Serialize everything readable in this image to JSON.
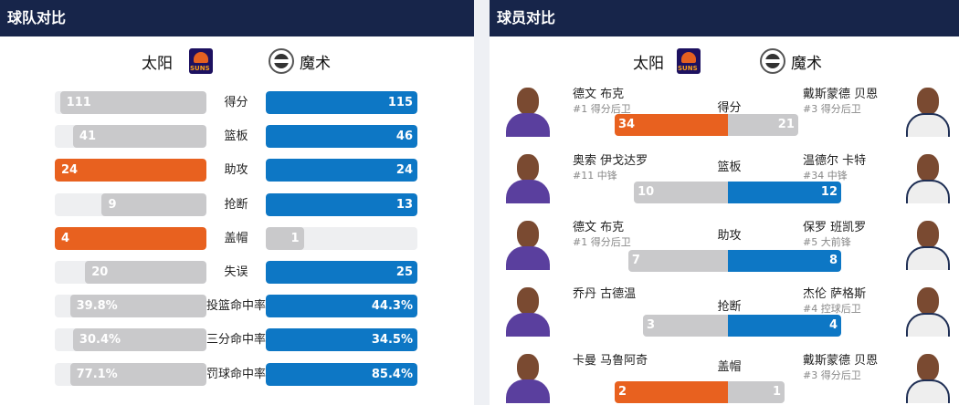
{
  "team_panel": {
    "title": "球队对比",
    "home_team": "太阳",
    "away_team": "魔术",
    "home_logo_icon": "suns-logo-icon",
    "away_logo_icon": "magic-logo-icon",
    "colors": {
      "home_leader": "#e8611f",
      "away_leader": "#0d77c5",
      "trailer": "#c9c9cb",
      "track": "#eeeff1",
      "header": "#17254a"
    },
    "stats": [
      {
        "label": "得分",
        "home": "111",
        "away": "115",
        "home_frac": 0.966,
        "away_frac": 1.0,
        "leader": "away"
      },
      {
        "label": "篮板",
        "home": "41",
        "away": "46",
        "home_frac": 0.88,
        "away_frac": 1.0,
        "leader": "away"
      },
      {
        "label": "助攻",
        "home": "24",
        "away": "24",
        "home_frac": 1.0,
        "away_frac": 1.0,
        "leader": "both"
      },
      {
        "label": "抢断",
        "home": "9",
        "away": "13",
        "home_frac": 0.69,
        "away_frac": 1.0,
        "leader": "away"
      },
      {
        "label": "盖帽",
        "home": "4",
        "away": "1",
        "home_frac": 1.0,
        "away_frac": 0.25,
        "leader": "home"
      },
      {
        "label": "失误",
        "home": "20",
        "away": "25",
        "home_frac": 0.8,
        "away_frac": 1.0,
        "leader": "away"
      },
      {
        "label": "投篮命中率",
        "home": "39.8%",
        "away": "44.3%",
        "home_frac": 0.9,
        "away_frac": 1.0,
        "leader": "away"
      },
      {
        "label": "三分命中率",
        "home": "30.4%",
        "away": "34.5%",
        "home_frac": 0.88,
        "away_frac": 1.0,
        "leader": "away"
      },
      {
        "label": "罚球命中率",
        "home": "77.1%",
        "away": "85.4%",
        "home_frac": 0.9,
        "away_frac": 1.0,
        "leader": "away"
      }
    ]
  },
  "player_panel": {
    "title": "球员对比",
    "home_team": "太阳",
    "away_team": "魔术",
    "rows": [
      {
        "stat": "得分",
        "home_name": "德文 布克",
        "home_pos": "#1 得分后卫",
        "away_name": "戴斯蒙德 贝恩",
        "away_pos": "#3 得分后卫",
        "home_val": "34",
        "away_val": "21",
        "home_frac": 1.0,
        "away_frac": 0.62,
        "leader": "home"
      },
      {
        "stat": "篮板",
        "home_name": "奥索 伊戈达罗",
        "home_pos": "#11 中锋",
        "away_name": "温德尔 卡特",
        "away_pos": "#34 中锋",
        "home_val": "10",
        "away_val": "12",
        "home_frac": 0.83,
        "away_frac": 1.0,
        "leader": "away"
      },
      {
        "stat": "助攻",
        "home_name": "德文 布克",
        "home_pos": "#1 得分后卫",
        "away_name": "保罗 班凯罗",
        "away_pos": "#5 大前锋",
        "home_val": "7",
        "away_val": "8",
        "home_frac": 0.88,
        "away_frac": 1.0,
        "leader": "away"
      },
      {
        "stat": "抢断",
        "home_name": "乔丹 古德温",
        "home_pos": "",
        "away_name": "杰伦 萨格斯",
        "away_pos": "#4 控球后卫",
        "home_val": "3",
        "away_val": "4",
        "home_frac": 0.75,
        "away_frac": 1.0,
        "leader": "away"
      },
      {
        "stat": "盖帽",
        "home_name": "卡曼 马鲁阿奇",
        "home_pos": "",
        "away_name": "戴斯蒙德 贝恩",
        "away_pos": "#3 得分后卫",
        "home_val": "2",
        "away_val": "1",
        "home_frac": 1.0,
        "away_frac": 0.5,
        "leader": "home"
      }
    ]
  }
}
